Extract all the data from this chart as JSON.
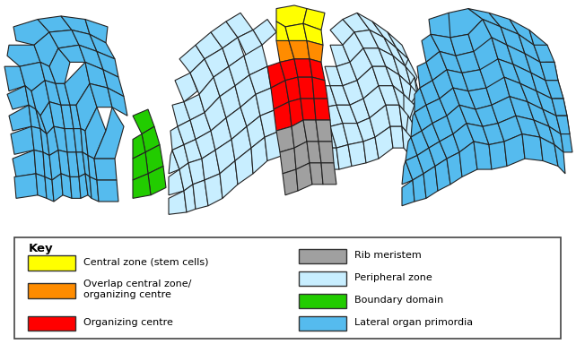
{
  "colors": {
    "central_zone": "#FFFF00",
    "overlap_zone": "#FF8C00",
    "organizing_centre": "#FF0000",
    "rib_meristem": "#A0A0A0",
    "peripheral_zone": "#C8EEFF",
    "boundary_domain": "#22CC00",
    "lateral_organ": "#55BBEE",
    "cell_edge": "#222222",
    "background": "#FFFFFF"
  },
  "legend": {
    "left_items": [
      {
        "color": "#FFFF00",
        "label": "Central zone (stem cells)"
      },
      {
        "color": "#FF8C00",
        "label": "Overlap central zone/\norganizing centre"
      },
      {
        "color": "#FF0000",
        "label": "Organizing centre"
      }
    ],
    "right_items": [
      {
        "color": "#A0A0A0",
        "label": "Rib meristem"
      },
      {
        "color": "#C8EEFF",
        "label": "Peripheral zone"
      },
      {
        "color": "#22CC00",
        "label": "Boundary domain"
      },
      {
        "color": "#55BBEE",
        "label": "Lateral organ primordia"
      }
    ]
  }
}
